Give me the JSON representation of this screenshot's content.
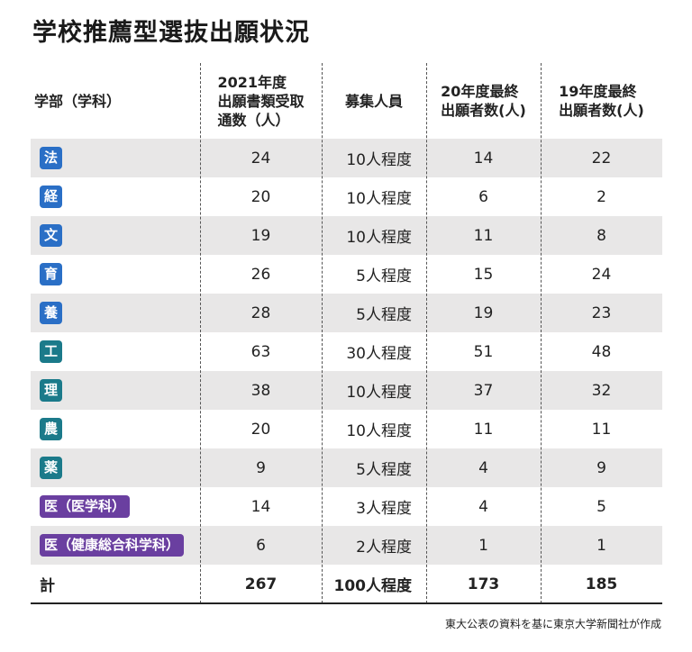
{
  "title": "学校推薦型選抜出願状況",
  "headers": [
    "学部（学科）",
    "2021年度\n出願書類受取\n通数（人）",
    "募集人員",
    "20年度最終\n出願者数(人)",
    "19年度最終\n出願者数(人)"
  ],
  "colors": {
    "blue": "#2a6fc6",
    "teal": "#1b7a8a",
    "purple": "#6a3fa0",
    "row_shade": "#e8e7e7"
  },
  "rows": [
    {
      "dept": "法",
      "color": "#2a6fc6",
      "received": "24",
      "quota": "10人程度",
      "y20": "14",
      "y19": "22"
    },
    {
      "dept": "経",
      "color": "#2a6fc6",
      "received": "20",
      "quota": "10人程度",
      "y20": "6",
      "y19": "2"
    },
    {
      "dept": "文",
      "color": "#2a6fc6",
      "received": "19",
      "quota": "10人程度",
      "y20": "11",
      "y19": "8"
    },
    {
      "dept": "育",
      "color": "#2a6fc6",
      "received": "26",
      "quota": "5人程度",
      "y20": "15",
      "y19": "24"
    },
    {
      "dept": "養",
      "color": "#2a6fc6",
      "received": "28",
      "quota": "5人程度",
      "y20": "19",
      "y19": "23"
    },
    {
      "dept": "工",
      "color": "#1b7a8a",
      "received": "63",
      "quota": "30人程度",
      "y20": "51",
      "y19": "48"
    },
    {
      "dept": "理",
      "color": "#1b7a8a",
      "received": "38",
      "quota": "10人程度",
      "y20": "37",
      "y19": "32"
    },
    {
      "dept": "農",
      "color": "#1b7a8a",
      "received": "20",
      "quota": "10人程度",
      "y20": "11",
      "y19": "11"
    },
    {
      "dept": "薬",
      "color": "#1b7a8a",
      "received": "9",
      "quota": "5人程度",
      "y20": "4",
      "y19": "9"
    },
    {
      "dept": "医（医学科）",
      "color": "#6a3fa0",
      "received": "14",
      "quota": "3人程度",
      "y20": "4",
      "y19": "5"
    },
    {
      "dept": "医（健康総合科学科）",
      "color": "#6a3fa0",
      "received": "6",
      "quota": "2人程度",
      "y20": "1",
      "y19": "1"
    }
  ],
  "total": {
    "label": "計",
    "received": "267",
    "quota": "100人程度",
    "y20": "173",
    "y19": "185"
  },
  "source": "東大公表の資料を基に東京大学新聞社が作成"
}
